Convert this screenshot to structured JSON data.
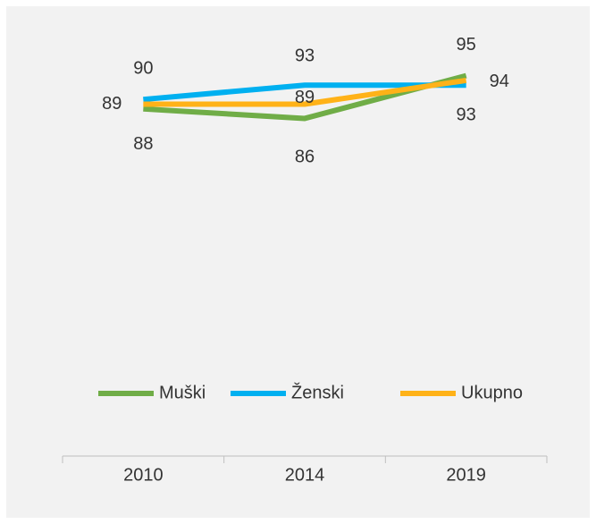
{
  "chart_data": {
    "type": "line",
    "categories": [
      "2010",
      "2014",
      "2019"
    ],
    "series": [
      {
        "name": "Muški",
        "color": "#70ad47",
        "values": [
          88,
          86,
          95
        ]
      },
      {
        "name": "Ženski",
        "color": "#00b0f0",
        "values": [
          90,
          93,
          93
        ]
      },
      {
        "name": "Ukupno",
        "color": "#ffb218",
        "values": [
          89,
          89,
          94
        ]
      }
    ],
    "ylim": [
      15,
      100
    ],
    "legend": "bottom"
  }
}
